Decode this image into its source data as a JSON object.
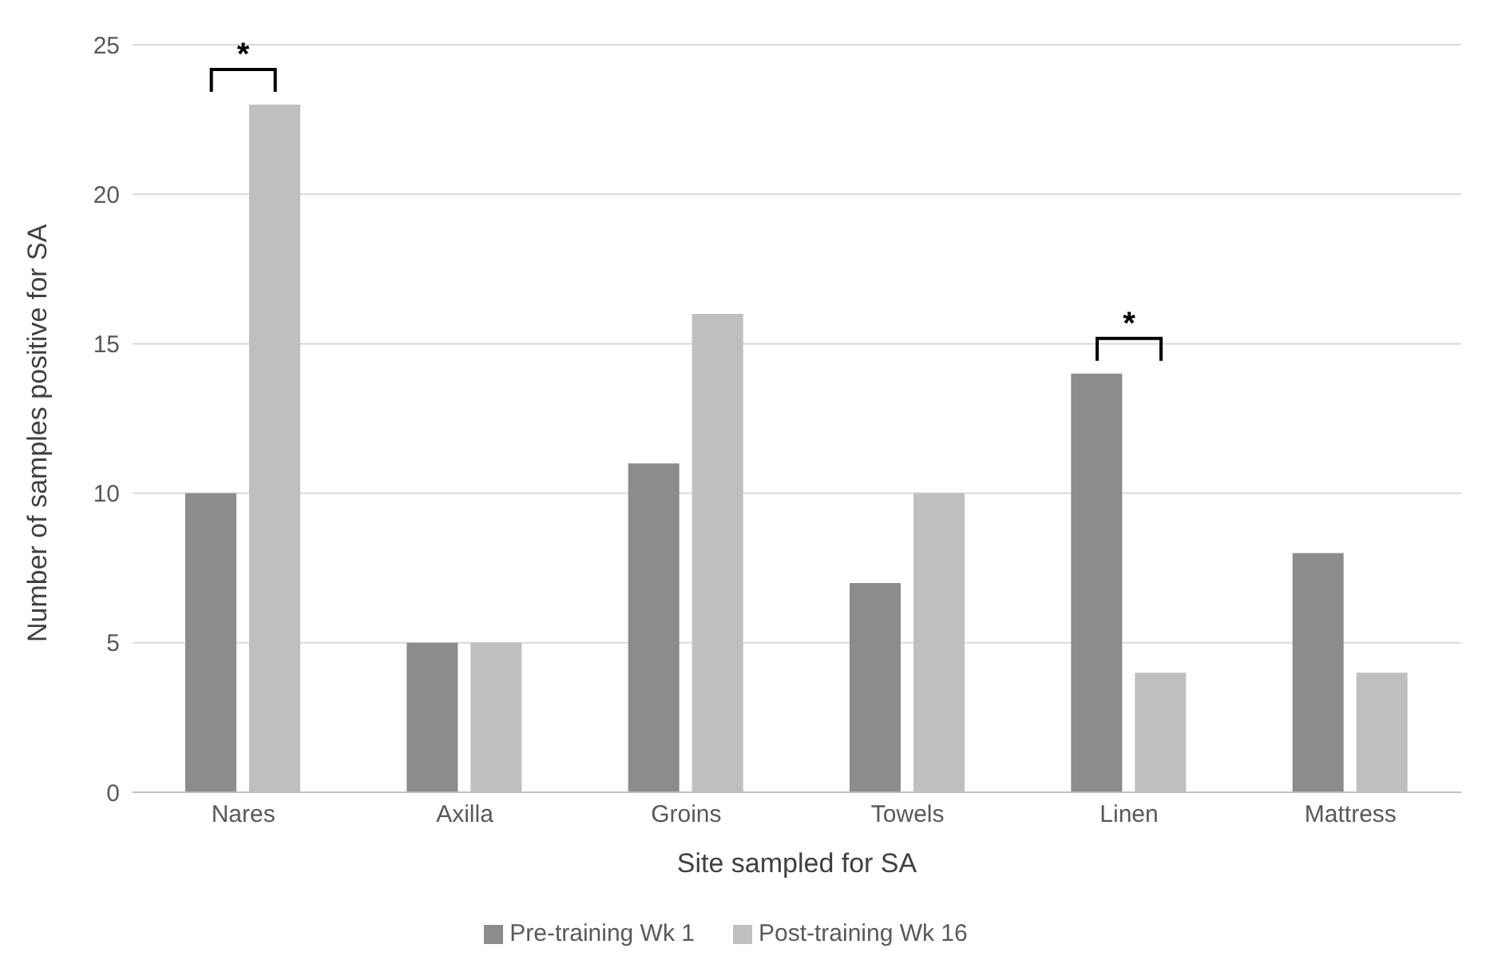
{
  "chart_data": {
    "type": "bar",
    "xlabel": "Site sampled for SA",
    "ylabel": "Number of samples positive for SA",
    "categories": [
      "Nares",
      "Axilla",
      "Groins",
      "Towels",
      "Linen",
      "Mattress"
    ],
    "series": [
      {
        "name": "Pre-training Wk 1",
        "color": "#8c8c8c",
        "values": [
          10,
          5,
          11,
          7,
          14,
          8
        ]
      },
      {
        "name": "Post-training Wk 16",
        "color": "#bfbfbf",
        "values": [
          23,
          5,
          16,
          10,
          4,
          4
        ]
      }
    ],
    "ylim": [
      0,
      25
    ],
    "yticks": [
      0,
      5,
      10,
      15,
      20,
      25
    ],
    "grid": "y",
    "legend": "bottom",
    "annotations": [
      {
        "text": "*",
        "x": "Nares",
        "y": 23
      },
      {
        "text": "*",
        "x": "Linen",
        "y": 14
      }
    ]
  }
}
